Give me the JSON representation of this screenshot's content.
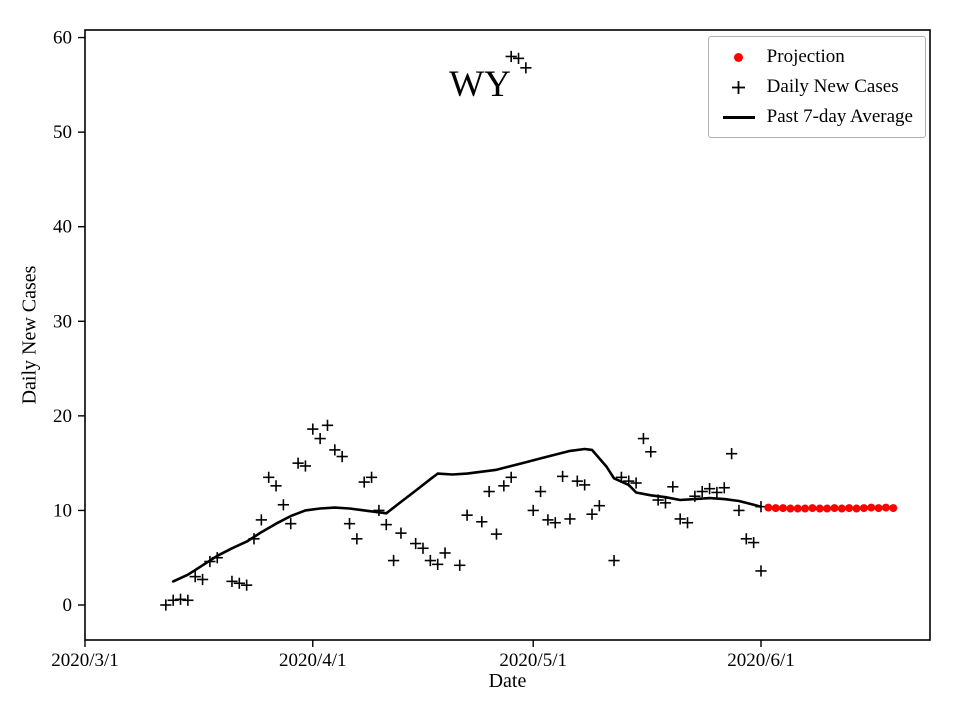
{
  "chart_data": {
    "type": "scatter",
    "title": "WY",
    "xlabel": "Date",
    "ylabel": "Daily New Cases",
    "background": "#ffffff",
    "grid": false,
    "ylim": [
      -3.7,
      60.8
    ],
    "yticks": [
      0,
      10,
      20,
      30,
      40,
      50,
      60
    ],
    "xlim_days": [
      0,
      115
    ],
    "xticks": [
      {
        "day": 0,
        "label": "2020/3/1"
      },
      {
        "day": 31,
        "label": "2020/4/1"
      },
      {
        "day": 61,
        "label": "2020/5/1"
      },
      {
        "day": 92,
        "label": "2020/6/1"
      }
    ],
    "legend": {
      "position": "top-right",
      "entries": [
        {
          "label": "Projection",
          "marker": "dot",
          "color": "#ff0000"
        },
        {
          "label": "Daily New Cases",
          "marker": "plus",
          "color": "#000000"
        },
        {
          "label": "Past 7-day Average",
          "marker": "line",
          "color": "#000000"
        }
      ]
    },
    "series": [
      {
        "name": "Daily New Cases",
        "type": "scatter",
        "marker": "plus",
        "color": "#000000",
        "points": [
          [
            11,
            0
          ],
          [
            12,
            0.5
          ],
          [
            13,
            0.6
          ],
          [
            14,
            0.5
          ],
          [
            15,
            3
          ],
          [
            16,
            2.7
          ],
          [
            17,
            4.6
          ],
          [
            18,
            5
          ],
          [
            20,
            2.5
          ],
          [
            21,
            2.3
          ],
          [
            22,
            2.1
          ],
          [
            23,
            7
          ],
          [
            24,
            9
          ],
          [
            25,
            13.5
          ],
          [
            26,
            12.6
          ],
          [
            27,
            10.6
          ],
          [
            28,
            8.6
          ],
          [
            29,
            15
          ],
          [
            30,
            14.7
          ],
          [
            31,
            18.6
          ],
          [
            32,
            17.6
          ],
          [
            33,
            19
          ],
          [
            34,
            16.4
          ],
          [
            35,
            15.7
          ],
          [
            36,
            8.6
          ],
          [
            37,
            7
          ],
          [
            38,
            13
          ],
          [
            39,
            13.5
          ],
          [
            40,
            10
          ],
          [
            41,
            8.5
          ],
          [
            42,
            4.7
          ],
          [
            43,
            7.6
          ],
          [
            45,
            6.5
          ],
          [
            46,
            6
          ],
          [
            47,
            4.7
          ],
          [
            48,
            4.3
          ],
          [
            49,
            5.5
          ],
          [
            51,
            4.2
          ],
          [
            52,
            9.5
          ],
          [
            54,
            8.8
          ],
          [
            55,
            12
          ],
          [
            56,
            7.5
          ],
          [
            57,
            12.6
          ],
          [
            58,
            13.5
          ],
          [
            58,
            58
          ],
          [
            59,
            57.8
          ],
          [
            60,
            56.8
          ],
          [
            61,
            10
          ],
          [
            62,
            12
          ],
          [
            63,
            9
          ],
          [
            64,
            8.7
          ],
          [
            65,
            13.6
          ],
          [
            66,
            9.1
          ],
          [
            67,
            13.1
          ],
          [
            68,
            12.7
          ],
          [
            69,
            9.6
          ],
          [
            70,
            10.5
          ],
          [
            72,
            4.7
          ],
          [
            73,
            13.5
          ],
          [
            74,
            13.1
          ],
          [
            75,
            12.9
          ],
          [
            76,
            17.6
          ],
          [
            77,
            16.2
          ],
          [
            78,
            11.1
          ],
          [
            79,
            10.8
          ],
          [
            80,
            12.5
          ],
          [
            81,
            9.1
          ],
          [
            82,
            8.7
          ],
          [
            83,
            11.5
          ],
          [
            84,
            12
          ],
          [
            85,
            12.3
          ],
          [
            86,
            11.9
          ],
          [
            87,
            12.4
          ],
          [
            88,
            16
          ],
          [
            89,
            10
          ],
          [
            90,
            7
          ],
          [
            91,
            6.6
          ],
          [
            92,
            3.6
          ],
          [
            92,
            10.4
          ]
        ]
      },
      {
        "name": "Past 7-day Average",
        "type": "line",
        "color": "#000000",
        "width": 2.6,
        "points": [
          [
            12,
            2.5
          ],
          [
            14,
            3.2
          ],
          [
            16,
            4.2
          ],
          [
            18,
            5.2
          ],
          [
            20,
            6
          ],
          [
            22,
            6.7
          ],
          [
            24,
            7.7
          ],
          [
            26,
            8.6
          ],
          [
            28,
            9.4
          ],
          [
            30,
            10
          ],
          [
            32,
            10.2
          ],
          [
            34,
            10.3
          ],
          [
            36,
            10.2
          ],
          [
            38,
            10
          ],
          [
            40,
            9.8
          ],
          [
            41,
            9.7
          ],
          [
            43,
            10.9
          ],
          [
            45,
            12.1
          ],
          [
            47,
            13.3
          ],
          [
            48,
            13.9
          ],
          [
            50,
            13.8
          ],
          [
            52,
            13.9
          ],
          [
            54,
            14.1
          ],
          [
            56,
            14.3
          ],
          [
            58,
            14.7
          ],
          [
            60,
            15.1
          ],
          [
            62,
            15.5
          ],
          [
            64,
            15.9
          ],
          [
            66,
            16.3
          ],
          [
            68,
            16.5
          ],
          [
            69,
            16.4
          ],
          [
            71,
            14.6
          ],
          [
            72,
            13.4
          ],
          [
            74,
            12.7
          ],
          [
            75,
            11.9
          ],
          [
            77,
            11.6
          ],
          [
            79,
            11.4
          ],
          [
            81,
            11.1
          ],
          [
            83,
            11.2
          ],
          [
            85,
            11.3
          ],
          [
            87,
            11.2
          ],
          [
            89,
            11
          ],
          [
            91,
            10.6
          ],
          [
            92,
            10.4
          ]
        ]
      },
      {
        "name": "Projection",
        "type": "scatter",
        "marker": "dot",
        "color": "#ff0000",
        "points": [
          [
            93,
            10.3
          ],
          [
            94,
            10.25
          ],
          [
            95,
            10.25
          ],
          [
            96,
            10.2
          ],
          [
            97,
            10.2
          ],
          [
            98,
            10.2
          ],
          [
            99,
            10.25
          ],
          [
            100,
            10.2
          ],
          [
            101,
            10.2
          ],
          [
            102,
            10.25
          ],
          [
            103,
            10.2
          ],
          [
            104,
            10.25
          ],
          [
            105,
            10.2
          ],
          [
            106,
            10.25
          ],
          [
            107,
            10.3
          ],
          [
            108,
            10.25
          ],
          [
            109,
            10.3
          ],
          [
            110,
            10.25
          ]
        ]
      }
    ]
  }
}
